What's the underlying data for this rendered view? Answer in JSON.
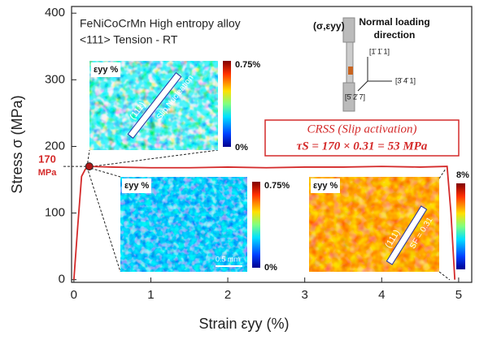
{
  "chart_data": {
    "type": "line",
    "x_label": "Strain εyy (%)",
    "y_label": "Stress σ (MPa)",
    "x": [
      0,
      0.05,
      0.1,
      0.15,
      0.2,
      0.5,
      1,
      1.5,
      2,
      2.5,
      3,
      3.5,
      4,
      4.5,
      4.85,
      4.9,
      4.95
    ],
    "series": [
      {
        "name": "FeNiCoCrMn <111> tension",
        "color": "#d42a2a",
        "values": [
          0,
          80,
          155,
          166,
          170,
          169,
          168,
          168,
          169,
          168,
          169,
          169,
          170,
          169,
          170,
          100,
          0
        ]
      }
    ],
    "xlim": [
      -0.03,
      5.17
    ],
    "ylim": [
      -4,
      410
    ],
    "xticks": [
      0,
      1,
      2,
      3,
      4,
      5
    ],
    "yticks": [
      0,
      100,
      200,
      300,
      400
    ],
    "annotations": {
      "title_line1": "FeNiCoCrMn High entropy alloy",
      "title_line2": "<111> Tension - RT",
      "yield_value": "170",
      "yield_unit": "MPa",
      "crss_line1": "CRSS (Slip activation)",
      "crss_line2": "τS = 170 × 0.31 = 53 MPa",
      "loading_sigma": "(σ,εyy)",
      "loading_line1": "Normal loading",
      "loading_line2": "direction",
      "dir1": "[1̄ 1̄ 1]",
      "dir2": "[3̄ 4̄ 1]",
      "dir3": "[5̄ 2̄ 7]",
      "inset1_label": "εyy %",
      "inset1_max": "0.75%",
      "inset1_min": "0%",
      "inset1_plane": "(111)",
      "inset1_note": "Slip Nucleation",
      "inset2_label": "εyy %",
      "inset2_max": "0.75%",
      "inset2_min": "0%",
      "inset2_scale": "0.5 mm",
      "inset3_label": "εyy %",
      "inset3_max": "8%",
      "inset3_plane": "(111)",
      "inset3_note": "SF = 0.31"
    }
  }
}
